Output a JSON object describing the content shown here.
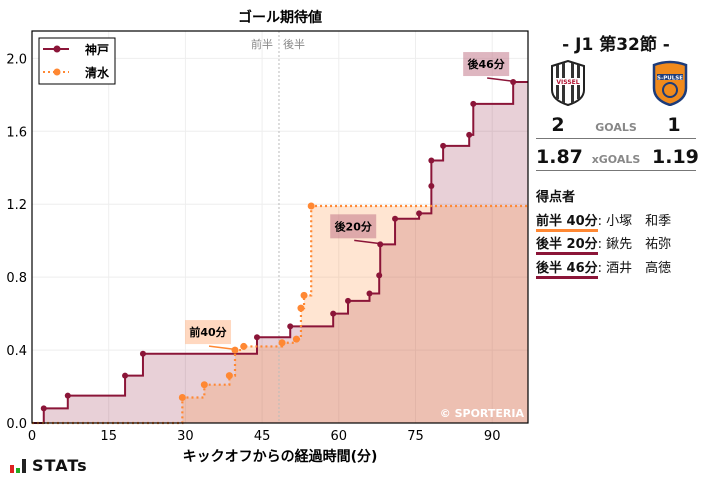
{
  "chart_data": {
    "type": "line",
    "title": "ゴール期待値",
    "xlabel": "キックオフからの経過時間(分)",
    "ylabel": "",
    "xlim": [
      0,
      97
    ],
    "ylim": [
      0,
      2.15
    ],
    "xticks": [
      0,
      15,
      30,
      45,
      60,
      75,
      90
    ],
    "yticks": [
      0.0,
      0.4,
      0.8,
      1.2,
      1.6,
      2.0
    ],
    "grid": true,
    "legend_position": "top-left",
    "halftime": {
      "minute": 48.3,
      "labels": [
        "前半",
        "後半"
      ]
    },
    "series": [
      {
        "name": "神戸",
        "color": "#8b1538",
        "style": "solid",
        "points": [
          [
            0,
            0
          ],
          [
            2.3,
            0.08
          ],
          [
            7.0,
            0.15
          ],
          [
            18.2,
            0.26
          ],
          [
            21.7,
            0.38
          ],
          [
            44.0,
            0.47
          ],
          [
            50.5,
            0.53
          ],
          [
            58.9,
            0.6
          ],
          [
            61.8,
            0.67
          ],
          [
            66.0,
            0.71
          ],
          [
            67.9,
            0.81
          ],
          [
            68.1,
            0.98
          ],
          [
            71.0,
            1.12
          ],
          [
            75.7,
            1.15
          ],
          [
            78.1,
            1.3
          ],
          [
            78.1,
            1.44
          ],
          [
            80.4,
            1.52
          ],
          [
            85.5,
            1.58
          ],
          [
            86.3,
            1.75
          ],
          [
            94.1,
            1.87
          ],
          [
            97,
            1.87
          ]
        ]
      },
      {
        "name": "清水",
        "color": "#ff8833",
        "style": "dotted",
        "points": [
          [
            0,
            0
          ],
          [
            29.4,
            0.14
          ],
          [
            33.7,
            0.21
          ],
          [
            38.6,
            0.26
          ],
          [
            39.7,
            0.4
          ],
          [
            41.4,
            0.42
          ],
          [
            48.9,
            0.44
          ],
          [
            51.7,
            0.46
          ],
          [
            52.6,
            0.63
          ],
          [
            53.2,
            0.7
          ],
          [
            54.6,
            1.19
          ],
          [
            97,
            1.19
          ]
        ]
      }
    ],
    "annotations": [
      {
        "text": "前40分",
        "x": 39.7,
        "y": 0.4,
        "team": 1
      },
      {
        "text": "後20分",
        "x": 68.1,
        "y": 0.98,
        "team": 0
      },
      {
        "text": "後46分",
        "x": 94.1,
        "y": 1.87,
        "team": 0
      }
    ],
    "watermark": "© SPORTERIA"
  },
  "panel": {
    "round": "-  J1 第32節  -",
    "home_logo_text": "VISSEL",
    "away_logo_text": "S-PULSE",
    "home_goals": "2",
    "goals_label": "GOALS",
    "away_goals": "1",
    "home_xg": "1.87",
    "xg_label": "xGOALS",
    "away_xg": "1.19",
    "scorers_title": "得点者",
    "scorers": [
      {
        "time": "前半 40分",
        "name": ": 小塚　和季",
        "color": "#ff8833"
      },
      {
        "time": "後半 20分",
        "name": ": 鍬先　祐弥",
        "color": "#8b1538"
      },
      {
        "time": "後半 46分",
        "name": ": 酒井　高徳",
        "color": "#8b1538"
      }
    ]
  },
  "brand": "STATs"
}
